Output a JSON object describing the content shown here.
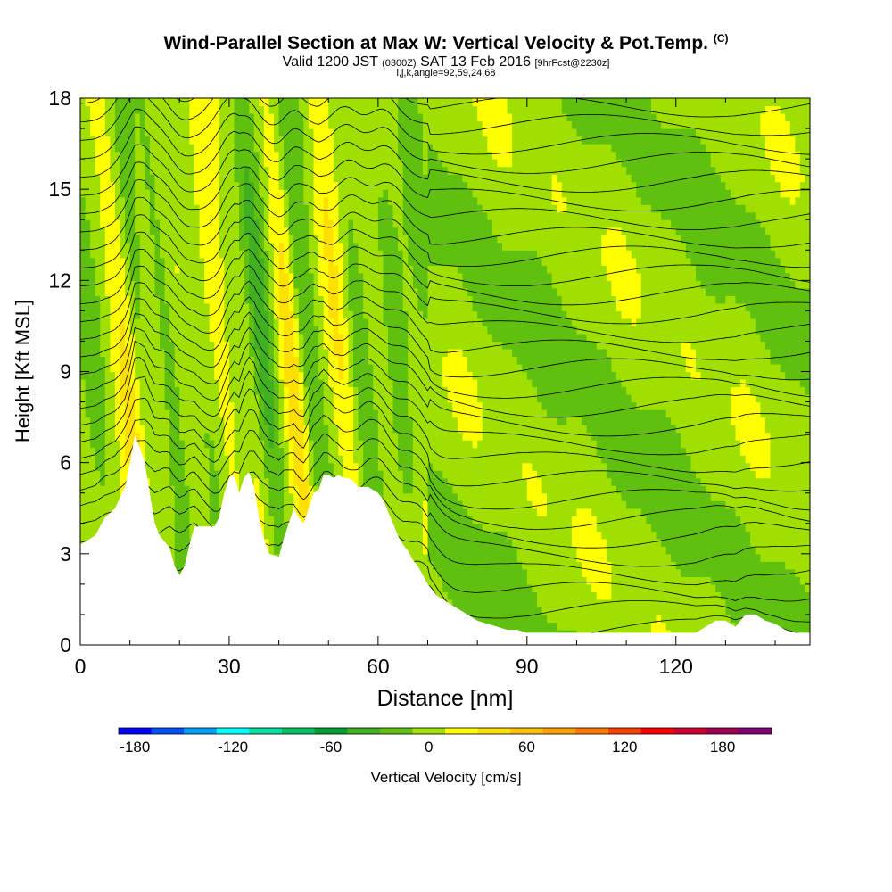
{
  "header": {
    "title": "Wind-Parallel Section at Max W: Vertical Velocity & Pot.Temp.",
    "title_mark": "(C)",
    "valid_prefix": "Valid 1200 JST",
    "valid_zulu": "(0300Z)",
    "valid_date": "SAT 13 Feb 2016",
    "valid_fcst": "[9hrFcst@2230z]",
    "indices": "i,j,k,angle=92,59,24,68"
  },
  "chart_data": {
    "type": "heatmap",
    "xlabel": "Distance [nm]",
    "ylabel": "Height [Kft MSL]",
    "xlim": [
      0,
      147
    ],
    "ylim": [
      0,
      18
    ],
    "x_ticks": [
      0,
      30,
      60,
      90,
      120
    ],
    "y_ticks": [
      0,
      3,
      6,
      9,
      12,
      15,
      18
    ],
    "colorbar": {
      "label": "Vertical Velocity [cm/s]",
      "range": [
        -190,
        200
      ],
      "step": 20,
      "tick_values": [
        -180,
        -120,
        -60,
        0,
        60,
        120,
        180
      ],
      "colors": [
        "#0000ff",
        "#0050ff",
        "#00a0ff",
        "#00ffff",
        "#00e0a0",
        "#00c060",
        "#00a030",
        "#40b020",
        "#60c010",
        "#a0e000",
        "#ffff00",
        "#ffe000",
        "#ffc000",
        "#ffa000",
        "#ff7800",
        "#ff4000",
        "#ff0000",
        "#d00030",
        "#a00050",
        "#800070"
      ]
    },
    "terrain": [
      [
        0,
        3.3
      ],
      [
        3,
        3.6
      ],
      [
        5,
        4.2
      ],
      [
        7,
        4.5
      ],
      [
        9,
        5.2
      ],
      [
        10,
        6.0
      ],
      [
        11,
        6.9
      ],
      [
        12,
        6.5
      ],
      [
        13,
        6.0
      ],
      [
        14,
        5.0
      ],
      [
        15,
        4.0
      ],
      [
        16,
        3.6
      ],
      [
        17,
        3.4
      ],
      [
        18,
        3.2
      ],
      [
        19,
        2.6
      ],
      [
        20,
        2.3
      ],
      [
        21,
        2.6
      ],
      [
        22,
        3.3
      ],
      [
        23,
        3.9
      ],
      [
        25,
        3.9
      ],
      [
        27,
        3.9
      ],
      [
        28,
        4.2
      ],
      [
        29,
        5.0
      ],
      [
        30,
        5.5
      ],
      [
        31,
        5.6
      ],
      [
        32,
        5.0
      ],
      [
        33,
        5.5
      ],
      [
        34,
        5.7
      ],
      [
        35,
        5.2
      ],
      [
        36,
        4.2
      ],
      [
        37,
        3.5
      ],
      [
        38,
        3.0
      ],
      [
        40,
        2.9
      ],
      [
        41,
        3.5
      ],
      [
        42,
        4.0
      ],
      [
        43,
        4.5
      ],
      [
        44,
        4.2
      ],
      [
        45,
        4.0
      ],
      [
        46,
        4.5
      ],
      [
        47,
        5.0
      ],
      [
        48,
        5.1
      ],
      [
        49,
        5.6
      ],
      [
        50,
        5.6
      ],
      [
        51,
        5.5
      ],
      [
        52,
        5.6
      ],
      [
        53,
        5.5
      ],
      [
        54,
        5.5
      ],
      [
        55,
        5.4
      ],
      [
        56,
        5.2
      ],
      [
        57,
        5.2
      ],
      [
        58,
        5.2
      ],
      [
        59,
        5.1
      ],
      [
        60,
        5.0
      ],
      [
        61,
        4.8
      ],
      [
        62,
        4.4
      ],
      [
        63,
        4.0
      ],
      [
        64,
        3.6
      ],
      [
        65,
        3.3
      ],
      [
        66,
        3.1
      ],
      [
        67,
        2.8
      ],
      [
        68,
        2.6
      ],
      [
        69,
        2.3
      ],
      [
        70,
        2.0
      ],
      [
        71,
        1.8
      ],
      [
        72,
        1.6
      ],
      [
        73,
        1.5
      ],
      [
        74,
        1.4
      ],
      [
        75,
        1.3
      ],
      [
        76,
        1.2
      ],
      [
        77,
        1.1
      ],
      [
        78,
        1.0
      ],
      [
        79,
        0.9
      ],
      [
        80,
        0.8
      ],
      [
        82,
        0.7
      ],
      [
        84,
        0.6
      ],
      [
        86,
        0.5
      ],
      [
        88,
        0.5
      ],
      [
        90,
        0.4
      ],
      [
        93,
        0.4
      ],
      [
        96,
        0.4
      ],
      [
        100,
        0.4
      ],
      [
        104,
        0.4
      ],
      [
        108,
        0.4
      ],
      [
        112,
        0.4
      ],
      [
        116,
        0.4
      ],
      [
        120,
        0.4
      ],
      [
        124,
        0.4
      ],
      [
        126,
        0.6
      ],
      [
        128,
        0.8
      ],
      [
        130,
        0.8
      ],
      [
        132,
        0.6
      ],
      [
        134,
        1.0
      ],
      [
        136,
        1.0
      ],
      [
        138,
        0.8
      ],
      [
        140,
        0.7
      ],
      [
        142,
        0.5
      ],
      [
        144,
        0.4
      ],
      [
        147,
        0.4
      ]
    ]
  }
}
